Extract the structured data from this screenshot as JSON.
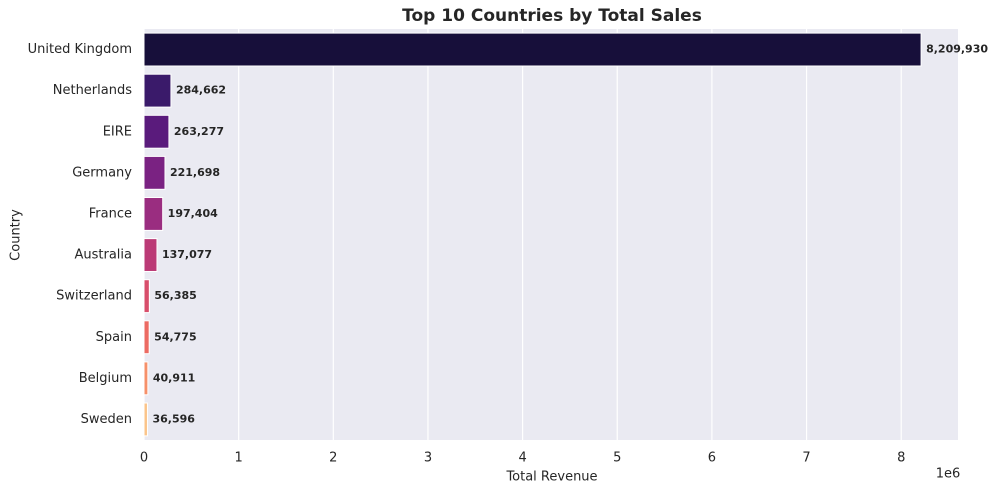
{
  "chart_data": {
    "type": "barh",
    "title": "Top 10 Countries by Total Sales",
    "xlabel": "Total Revenue",
    "ylabel": "Country",
    "x_offset_label": "1e6",
    "categories": [
      "United Kingdom",
      "Netherlands",
      "EIRE",
      "Germany",
      "France",
      "Australia",
      "Switzerland",
      "Spain",
      "Belgium",
      "Sweden"
    ],
    "values": [
      8209930,
      284662,
      263277,
      221698,
      197404,
      137077,
      56385,
      54775,
      40911,
      36596
    ],
    "value_labels": [
      "8,209,930",
      "284,662",
      "263,277",
      "221,698",
      "197,404",
      "137,077",
      "56,385",
      "54,775",
      "40,911",
      "36,596"
    ],
    "colors": [
      "#170f3a",
      "#3a1a6a",
      "#5a1b7c",
      "#7a2282",
      "#9a2d80",
      "#bb3a76",
      "#d84e6b",
      "#ec6b63",
      "#f6906a",
      "#fbc48a"
    ],
    "xlim": [
      0,
      8600000
    ],
    "xticks": [
      0,
      {
        "value": 1000000,
        "label": "1"
      },
      {
        "value": 2000000,
        "label": "2"
      },
      {
        "value": 3000000,
        "label": "3"
      },
      {
        "value": 4000000,
        "label": "4"
      },
      {
        "value": 5000000,
        "label": "5"
      },
      {
        "value": 6000000,
        "label": "6"
      },
      {
        "value": 7000000,
        "label": "7"
      },
      {
        "value": 8000000,
        "label": "8"
      }
    ],
    "grid": true
  }
}
